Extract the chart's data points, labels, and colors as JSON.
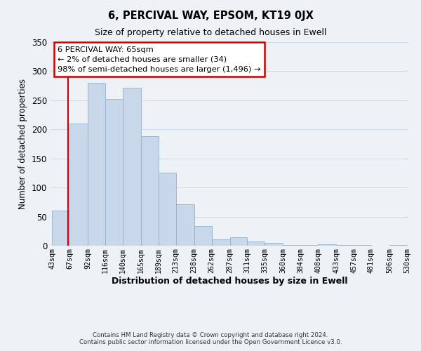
{
  "title": "6, PERCIVAL WAY, EPSOM, KT19 0JX",
  "subtitle": "Size of property relative to detached houses in Ewell",
  "xlabel": "Distribution of detached houses by size in Ewell",
  "ylabel": "Number of detached properties",
  "bar_left_edges": [
    43,
    67,
    92,
    116,
    140,
    165,
    189,
    213,
    238,
    262,
    287,
    311,
    335,
    360,
    384,
    408,
    433,
    457,
    481,
    506
  ],
  "bar_widths": [
    24,
    25,
    24,
    24,
    25,
    24,
    24,
    25,
    24,
    25,
    24,
    24,
    25,
    24,
    24,
    25,
    24,
    24,
    25,
    24
  ],
  "bar_heights": [
    60,
    210,
    280,
    252,
    272,
    188,
    126,
    71,
    34,
    11,
    14,
    7,
    5,
    1,
    1,
    2,
    1,
    1,
    0,
    1
  ],
  "bar_color": "#c8d8ea",
  "bar_edgecolor": "#90b4cc",
  "highlight_x": 65,
  "annotation_line1": "6 PERCIVAL WAY: 65sqm",
  "annotation_line2": "← 2% of detached houses are smaller (34)",
  "annotation_line3": "98% of semi-detached houses are larger (1,496) →",
  "annotation_box_color": "#ffffff",
  "annotation_box_edgecolor": "#cc0000",
  "vline_color": "#cc0000",
  "ylim": [
    0,
    350
  ],
  "yticks": [
    0,
    50,
    100,
    150,
    200,
    250,
    300,
    350
  ],
  "xtick_labels": [
    "43sqm",
    "67sqm",
    "92sqm",
    "116sqm",
    "140sqm",
    "165sqm",
    "189sqm",
    "213sqm",
    "238sqm",
    "262sqm",
    "287sqm",
    "311sqm",
    "335sqm",
    "360sqm",
    "384sqm",
    "408sqm",
    "433sqm",
    "457sqm",
    "481sqm",
    "506sqm",
    "530sqm"
  ],
  "xtick_positions": [
    43,
    67,
    92,
    116,
    140,
    165,
    189,
    213,
    238,
    262,
    287,
    311,
    335,
    360,
    384,
    408,
    433,
    457,
    481,
    506,
    530
  ],
  "grid_color": "#d0dce8",
  "background_color": "#eef2f7",
  "footer_line1": "Contains HM Land Registry data © Crown copyright and database right 2024.",
  "footer_line2": "Contains public sector information licensed under the Open Government Licence v3.0."
}
